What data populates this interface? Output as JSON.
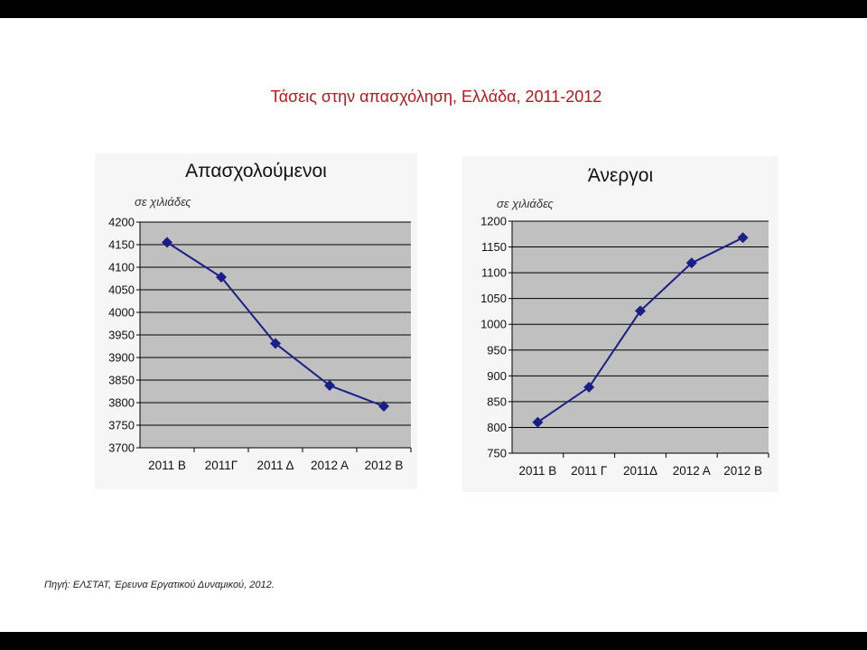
{
  "slide": {
    "title": "Τάσεις στην απασχόληση, Ελλάδα, 2011-2012",
    "source": "Πηγή: ΕΛΣΤΑΤ, Έρευνα Εργατικού Δυναμικού, 2012."
  },
  "colors": {
    "title": "#c0141a",
    "series": "#1a1f86",
    "plot_area": "#c0c0c0",
    "gridline": "#000000"
  },
  "chart_data": [
    {
      "type": "line",
      "title": "Απασχολούμενοι",
      "ylabel": "σε χιλιάδες",
      "categories": [
        "2011 Β",
        "2011Γ",
        "2011 Δ",
        "2012 Α",
        "2012 Β"
      ],
      "series": [
        {
          "values": [
            4155,
            4078,
            3931,
            3838,
            3792
          ]
        }
      ],
      "ylim": [
        3700,
        4200
      ],
      "yticks": [
        3700,
        3750,
        3800,
        3850,
        3900,
        3950,
        4000,
        4050,
        4100,
        4150,
        4200
      ],
      "grid": true,
      "legend": "none",
      "marker": "diamond"
    },
    {
      "type": "line",
      "title": "Άνεργοι",
      "ylabel": "σε χιλιάδες",
      "categories": [
        "2011 Β",
        "2011 Γ",
        "2011Δ",
        "2012 Α",
        "2012 Β"
      ],
      "series": [
        {
          "values": [
            810,
            878,
            1026,
            1119,
            1168
          ]
        }
      ],
      "ylim": [
        750,
        1200
      ],
      "yticks": [
        750,
        800,
        850,
        900,
        950,
        1000,
        1050,
        1100,
        1150,
        1200
      ],
      "grid": true,
      "legend": "none",
      "marker": "diamond"
    }
  ]
}
